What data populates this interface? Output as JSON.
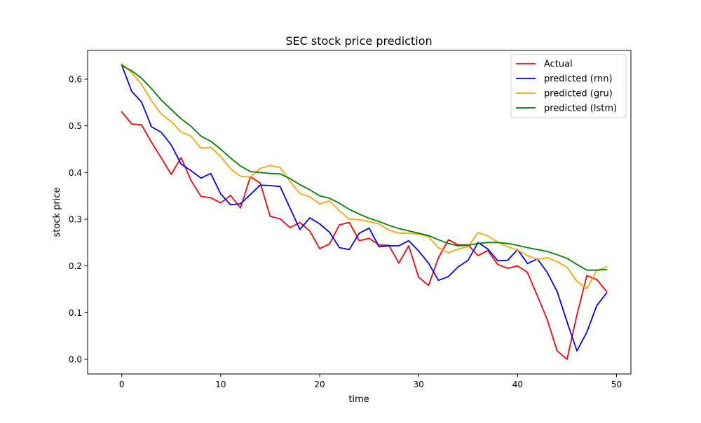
{
  "chart_data": {
    "type": "line",
    "title": "SEC stock price prediction",
    "xlabel": "time",
    "ylabel": "stock price",
    "xlim": [
      -3.45,
      51.45
    ],
    "ylim": [
      -0.0315,
      0.6615
    ],
    "xticks": [
      0,
      10,
      20,
      30,
      40,
      50
    ],
    "yticks": [
      0.0,
      0.1,
      0.2,
      0.3,
      0.4,
      0.5,
      0.6
    ],
    "ytick_labels": [
      "0.0",
      "0.1",
      "0.2",
      "0.3",
      "0.4",
      "0.5",
      "0.6"
    ],
    "grid": false,
    "legend_position": "top-right",
    "x": [
      0,
      1,
      2,
      3,
      4,
      5,
      6,
      7,
      8,
      9,
      10,
      11,
      12,
      13,
      14,
      15,
      16,
      17,
      18,
      19,
      20,
      21,
      22,
      23,
      24,
      25,
      26,
      27,
      28,
      29,
      30,
      31,
      32,
      33,
      34,
      35,
      36,
      37,
      38,
      39,
      40,
      41,
      42,
      43,
      44,
      45,
      46,
      47,
      48,
      49
    ],
    "series": [
      {
        "name": "Actual",
        "color": "#ff0000",
        "values": [
          0.53,
          0.504,
          0.502,
          0.465,
          0.431,
          0.396,
          0.432,
          0.383,
          0.349,
          0.346,
          0.335,
          0.351,
          0.324,
          0.391,
          0.377,
          0.306,
          0.301,
          0.282,
          0.293,
          0.275,
          0.237,
          0.247,
          0.288,
          0.293,
          0.254,
          0.259,
          0.245,
          0.244,
          0.206,
          0.243,
          0.176,
          0.158,
          0.217,
          0.256,
          0.245,
          0.245,
          0.222,
          0.233,
          0.203,
          0.195,
          0.2,
          0.186,
          0.136,
          0.085,
          0.018,
          0.0,
          0.095,
          0.179,
          0.171,
          0.145
        ]
      },
      {
        "name": "predicted (rnn)",
        "color": "#0000ff",
        "values": [
          0.63,
          0.574,
          0.551,
          0.498,
          0.486,
          0.459,
          0.418,
          0.404,
          0.388,
          0.398,
          0.354,
          0.331,
          0.333,
          0.353,
          0.373,
          0.372,
          0.37,
          0.324,
          0.278,
          0.303,
          0.29,
          0.272,
          0.239,
          0.235,
          0.27,
          0.281,
          0.241,
          0.243,
          0.243,
          0.254,
          0.232,
          0.206,
          0.169,
          0.177,
          0.198,
          0.212,
          0.25,
          0.236,
          0.211,
          0.212,
          0.235,
          0.205,
          0.215,
          0.186,
          0.145,
          0.08,
          0.018,
          0.058,
          0.115,
          0.142
        ]
      },
      {
        "name": "predicted (gru)",
        "color": "#ffa500",
        "values": [
          0.633,
          0.614,
          0.589,
          0.554,
          0.525,
          0.509,
          0.487,
          0.478,
          0.452,
          0.454,
          0.434,
          0.408,
          0.392,
          0.39,
          0.409,
          0.415,
          0.411,
          0.381,
          0.355,
          0.348,
          0.333,
          0.339,
          0.318,
          0.3,
          0.299,
          0.295,
          0.29,
          0.277,
          0.27,
          0.27,
          0.268,
          0.263,
          0.239,
          0.228,
          0.236,
          0.241,
          0.271,
          0.264,
          0.251,
          0.241,
          0.234,
          0.222,
          0.214,
          0.218,
          0.209,
          0.197,
          0.167,
          0.151,
          0.19,
          0.198
        ]
      },
      {
        "name": "predicted (lstm)",
        "color": "#008000",
        "values": [
          0.629,
          0.618,
          0.602,
          0.58,
          0.555,
          0.535,
          0.515,
          0.499,
          0.478,
          0.467,
          0.45,
          0.431,
          0.414,
          0.402,
          0.4,
          0.398,
          0.397,
          0.387,
          0.374,
          0.363,
          0.35,
          0.345,
          0.334,
          0.321,
          0.311,
          0.302,
          0.295,
          0.287,
          0.28,
          0.275,
          0.27,
          0.265,
          0.256,
          0.248,
          0.243,
          0.244,
          0.248,
          0.25,
          0.25,
          0.248,
          0.244,
          0.239,
          0.235,
          0.231,
          0.224,
          0.216,
          0.203,
          0.191,
          0.191,
          0.192
        ]
      }
    ]
  }
}
